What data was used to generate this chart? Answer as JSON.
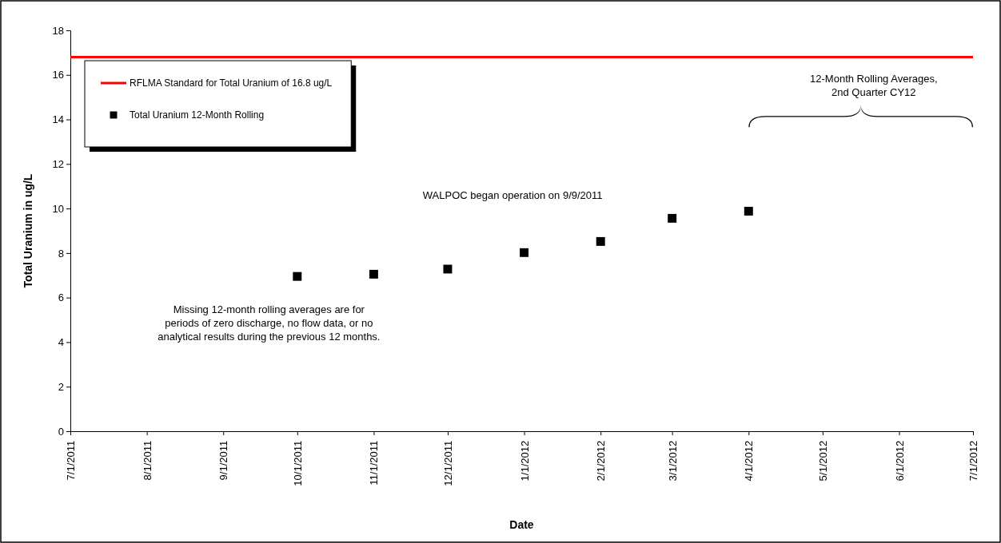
{
  "chart_data": {
    "type": "scatter",
    "xlabel": "Date",
    "ylabel": "Total Uranium in ug/L",
    "x": [
      "2011-10-01",
      "2011-11-01",
      "2011-12-01",
      "2012-01-01",
      "2012-02-01",
      "2012-03-01",
      "2012-04-01"
    ],
    "series": [
      {
        "name": "Total Uranium 12-Month Rolling",
        "color": "#000000",
        "values": [
          6.95,
          7.05,
          7.28,
          8.02,
          8.52,
          9.56,
          9.88
        ]
      }
    ],
    "marker": "square",
    "xlim": [
      "2011-07-01",
      "2012-07-01"
    ],
    "xticks": [
      {
        "value": "2011-07-01",
        "label": "7/1/2011"
      },
      {
        "value": "2011-08-01",
        "label": "8/1/2011"
      },
      {
        "value": "2011-09-01",
        "label": "9/1/2011"
      },
      {
        "value": "2011-10-01",
        "label": "10/1/2011"
      },
      {
        "value": "2011-11-01",
        "label": "11/1/2011"
      },
      {
        "value": "2011-12-01",
        "label": "12/1/2011"
      },
      {
        "value": "2012-01-01",
        "label": "1/1/2012"
      },
      {
        "value": "2012-02-01",
        "label": "2/1/2012"
      },
      {
        "value": "2012-03-01",
        "label": "3/1/2012"
      },
      {
        "value": "2012-04-01",
        "label": "4/1/2012"
      },
      {
        "value": "2012-05-01",
        "label": "5/1/2012"
      },
      {
        "value": "2012-06-01",
        "label": "6/1/2012"
      },
      {
        "value": "2012-07-01",
        "label": "7/1/2012"
      }
    ],
    "ylim": [
      0,
      18
    ],
    "yticks": [
      0,
      2,
      4,
      6,
      8,
      10,
      12,
      14,
      16,
      18
    ],
    "ref_lines": [
      {
        "axis": "y",
        "value": 16.8,
        "label": "RFLMA Standard for Total Uranium of 16.8 ug/L",
        "color": "#ff0000"
      }
    ],
    "legend": "top left",
    "grid": false,
    "annotations": [
      "WALPOC began operation on 9/9/2011",
      "Missing 12-month rolling averages are for periods of zero discharge, no flow data, or no analytical results during the previous 12 months.",
      "12-Month Rolling Averages, 2nd Quarter CY12"
    ]
  }
}
